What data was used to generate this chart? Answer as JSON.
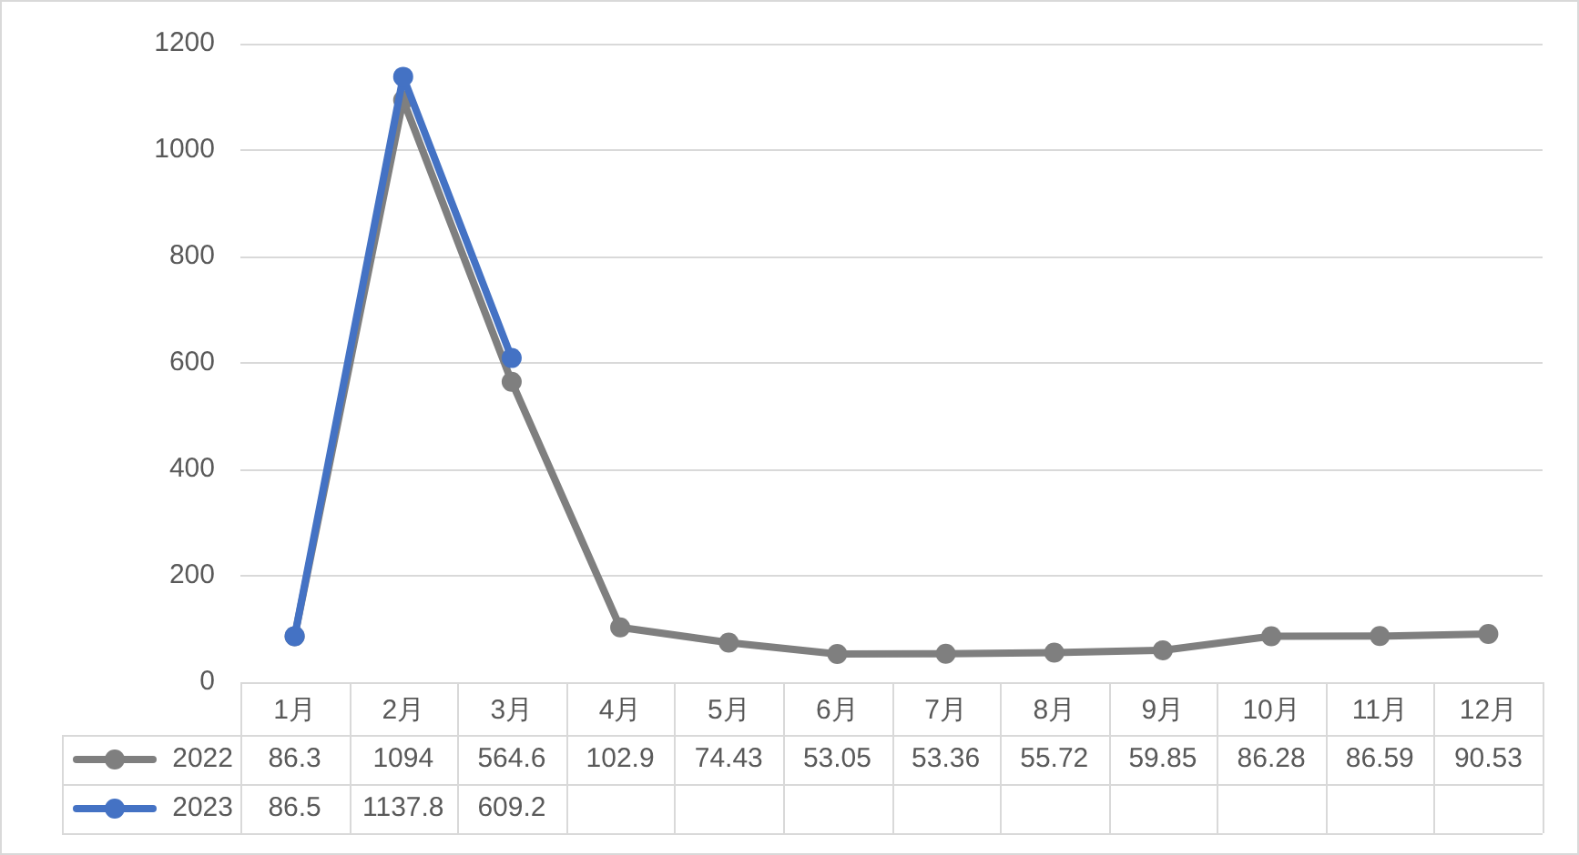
{
  "chart_data": {
    "type": "line",
    "categories": [
      "1月",
      "2月",
      "3月",
      "4月",
      "5月",
      "6月",
      "7月",
      "8月",
      "9月",
      "10月",
      "11月",
      "12月"
    ],
    "series": [
      {
        "name": "2022",
        "color": "#7f7f7f",
        "values": [
          86.3,
          1094,
          564.6,
          102.9,
          74.43,
          53.05,
          53.36,
          55.72,
          59.85,
          86.28,
          86.59,
          90.53
        ]
      },
      {
        "name": "2023",
        "color": "#4472c4",
        "values": [
          86.5,
          1137.8,
          609.2,
          null,
          null,
          null,
          null,
          null,
          null,
          null,
          null,
          null
        ]
      }
    ],
    "ylim": [
      0,
      1200
    ],
    "yticks": [
      0,
      200,
      400,
      600,
      800,
      1000,
      1200
    ],
    "grid": "y",
    "legend": "bottom",
    "marker": "circle",
    "line_style": "solid",
    "data_labels": true
  }
}
